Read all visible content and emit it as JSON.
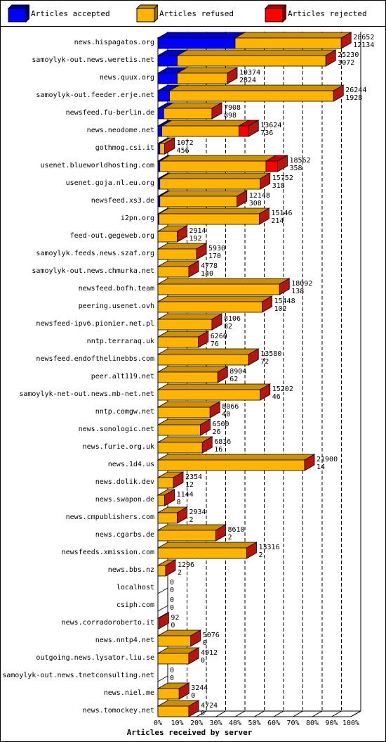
{
  "colors": {
    "accepted": "#0000ff",
    "refused": "#ffb400",
    "rejected": "#ff0000"
  },
  "legend": {
    "accepted_label": "Articles accepted",
    "refused_label": "Articles refused",
    "rejected_label": "Articles rejected"
  },
  "chart_data": {
    "type": "bar",
    "orientation": "horizontal",
    "stacked": true,
    "title": "",
    "xlabel": "Articles received by server",
    "ylabel": "",
    "xlim": [
      0,
      100
    ],
    "x_unit": "%",
    "x_ticks": [
      "0%",
      "10%",
      "20%",
      "30%",
      "40%",
      "50%",
      "60%",
      "70%",
      "80%",
      "90%",
      "100%"
    ],
    "grid": true,
    "legend_position": "top",
    "series": [
      {
        "name": "Articles accepted",
        "color": "#0000ff"
      },
      {
        "name": "Articles refused",
        "color": "#ffb400"
      },
      {
        "name": "Articles rejected",
        "color": "#ff0000"
      }
    ],
    "rows": [
      {
        "server": "news.hispagatos.org",
        "total": "28652",
        "rejected_count": "12134",
        "accepted_pct": 40,
        "refused_pct": 55,
        "rejected_pct": 0
      },
      {
        "server": "samoylyk-out.news.weretis.net",
        "total": "25230",
        "rejected_count": "3072",
        "accepted_pct": 10,
        "refused_pct": 77,
        "rejected_pct": 0
      },
      {
        "server": "news.quux.org",
        "total": "10374",
        "rejected_count": "2824",
        "accepted_pct": 10,
        "refused_pct": 26,
        "rejected_pct": 0
      },
      {
        "server": "samoylyk-out.feeder.erje.net",
        "total": "26244",
        "rejected_count": "1928",
        "accepted_pct": 6,
        "refused_pct": 85,
        "rejected_pct": 0
      },
      {
        "server": "newsfeed.fu-berlin.de",
        "total": "7908",
        "rejected_count": "898",
        "accepted_pct": 3,
        "refused_pct": 25,
        "rejected_pct": 0
      },
      {
        "server": "news.neodome.net",
        "total": "13624",
        "rejected_count": "736",
        "accepted_pct": 2,
        "refused_pct": 40,
        "rejected_pct": 5
      },
      {
        "server": "gothmog.csi.it",
        "total": "1072",
        "rejected_count": "456",
        "accepted_pct": 1,
        "refused_pct": 2.5,
        "rejected_pct": 0
      },
      {
        "server": "usenet.blueworldhosting.com",
        "total": "18562",
        "rejected_count": "358",
        "accepted_pct": 1,
        "refused_pct": 55,
        "rejected_pct": 6
      },
      {
        "server": "usenet.goja.nl.eu.org",
        "total": "15752",
        "rejected_count": "318",
        "accepted_pct": 1,
        "refused_pct": 52,
        "rejected_pct": 0
      },
      {
        "server": "newsfeed.xs3.de",
        "total": "12148",
        "rejected_count": "308",
        "accepted_pct": 1,
        "refused_pct": 40,
        "rejected_pct": 0
      },
      {
        "server": "i2pn.org",
        "total": "15146",
        "rejected_count": "214",
        "accepted_pct": 0.5,
        "refused_pct": 52,
        "rejected_pct": 0
      },
      {
        "server": "feed-out.gegeweb.org",
        "total": "2914",
        "rejected_count": "192",
        "accepted_pct": 0,
        "refused_pct": 10,
        "rejected_pct": 0
      },
      {
        "server": "samoylyk.feeds.news.szaf.org",
        "total": "5930",
        "rejected_count": "170",
        "accepted_pct": 0,
        "refused_pct": 20,
        "rejected_pct": 0
      },
      {
        "server": "samoylyk-out.news.chmurka.net",
        "total": "4778",
        "rejected_count": "140",
        "accepted_pct": 0,
        "refused_pct": 16,
        "rejected_pct": 0
      },
      {
        "server": "newsfeed.bofh.team",
        "total": "18092",
        "rejected_count": "138",
        "accepted_pct": 0,
        "refused_pct": 63,
        "rejected_pct": 0
      },
      {
        "server": "peering.usenet.ovh",
        "total": "15448",
        "rejected_count": "102",
        "accepted_pct": 0,
        "refused_pct": 54,
        "rejected_pct": 0
      },
      {
        "server": "newsfeed-ipv6.pionier.net.pl",
        "total": "8106",
        "rejected_count": "82",
        "accepted_pct": 0,
        "refused_pct": 28,
        "rejected_pct": 0
      },
      {
        "server": "nntp.terraraq.uk",
        "total": "6260",
        "rejected_count": "76",
        "accepted_pct": 0,
        "refused_pct": 21,
        "rejected_pct": 0
      },
      {
        "server": "newsfeed.endofthelinebbs.com",
        "total": "13580",
        "rejected_count": "72",
        "accepted_pct": 0,
        "refused_pct": 47,
        "rejected_pct": 0
      },
      {
        "server": "peer.alt119.net",
        "total": "8904",
        "rejected_count": "62",
        "accepted_pct": 0,
        "refused_pct": 31,
        "rejected_pct": 0
      },
      {
        "server": "samoylyk-net-out.news.mb-net.net",
        "total": "15202",
        "rejected_count": "46",
        "accepted_pct": 0,
        "refused_pct": 53,
        "rejected_pct": 0
      },
      {
        "server": "nntp.comgw.net",
        "total": "8066",
        "rejected_count": "40",
        "accepted_pct": 0,
        "refused_pct": 27,
        "rejected_pct": 0
      },
      {
        "server": "news.sonologic.net",
        "total": "6500",
        "rejected_count": "26",
        "accepted_pct": 0,
        "refused_pct": 22,
        "rejected_pct": 0
      },
      {
        "server": "news.furie.org.uk",
        "total": "6836",
        "rejected_count": "16",
        "accepted_pct": 0,
        "refused_pct": 23,
        "rejected_pct": 0
      },
      {
        "server": "news.1d4.us",
        "total": "21900",
        "rejected_count": "14",
        "accepted_pct": 0,
        "refused_pct": 76,
        "rejected_pct": 0
      },
      {
        "server": "news.dolik.dev",
        "total": "2354",
        "rejected_count": "12",
        "accepted_pct": 0,
        "refused_pct": 8,
        "rejected_pct": 0
      },
      {
        "server": "news.swapon.de",
        "total": "1144",
        "rejected_count": "8",
        "accepted_pct": 0,
        "refused_pct": 3.5,
        "rejected_pct": 0
      },
      {
        "server": "news.cmpublishers.com",
        "total": "2934",
        "rejected_count": "2",
        "accepted_pct": 0,
        "refused_pct": 10,
        "rejected_pct": 0
      },
      {
        "server": "news.cgarbs.de",
        "total": "8610",
        "rejected_count": "2",
        "accepted_pct": 0,
        "refused_pct": 30,
        "rejected_pct": 0
      },
      {
        "server": "newsfeeds.xmission.com",
        "total": "13316",
        "rejected_count": "2",
        "accepted_pct": 0,
        "refused_pct": 46,
        "rejected_pct": 0
      },
      {
        "server": "news.bbs.nz",
        "total": "1296",
        "rejected_count": "2",
        "accepted_pct": 0,
        "refused_pct": 4,
        "rejected_pct": 0
      },
      {
        "server": "localhost",
        "total": "0",
        "rejected_count": "0",
        "accepted_pct": 0,
        "refused_pct": 0,
        "rejected_pct": 0
      },
      {
        "server": "csiph.com",
        "total": "0",
        "rejected_count": "0",
        "accepted_pct": 0,
        "refused_pct": 0,
        "rejected_pct": 0
      },
      {
        "server": "news.corradoroberto.it",
        "total": "92",
        "rejected_count": "0",
        "accepted_pct": 0,
        "refused_pct": 0.5,
        "rejected_pct": 0
      },
      {
        "server": "news.nntp4.net",
        "total": "5076",
        "rejected_count": "0",
        "accepted_pct": 0,
        "refused_pct": 17,
        "rejected_pct": 0
      },
      {
        "server": "outgoing.news.lysator.liu.se",
        "total": "4912",
        "rejected_count": "0",
        "accepted_pct": 0,
        "refused_pct": 16,
        "rejected_pct": 0
      },
      {
        "server": "samoylyk-out.news.tnetconsulting.net",
        "total": "0",
        "rejected_count": "0",
        "accepted_pct": 0,
        "refused_pct": 0,
        "rejected_pct": 0
      },
      {
        "server": "news.niel.me",
        "total": "3244",
        "rejected_count": "0",
        "accepted_pct": 0,
        "refused_pct": 11,
        "rejected_pct": 0
      },
      {
        "server": "news.tomockey.net",
        "total": "4724",
        "rejected_count": "0",
        "accepted_pct": 0,
        "refused_pct": 16,
        "rejected_pct": 0
      }
    ]
  }
}
